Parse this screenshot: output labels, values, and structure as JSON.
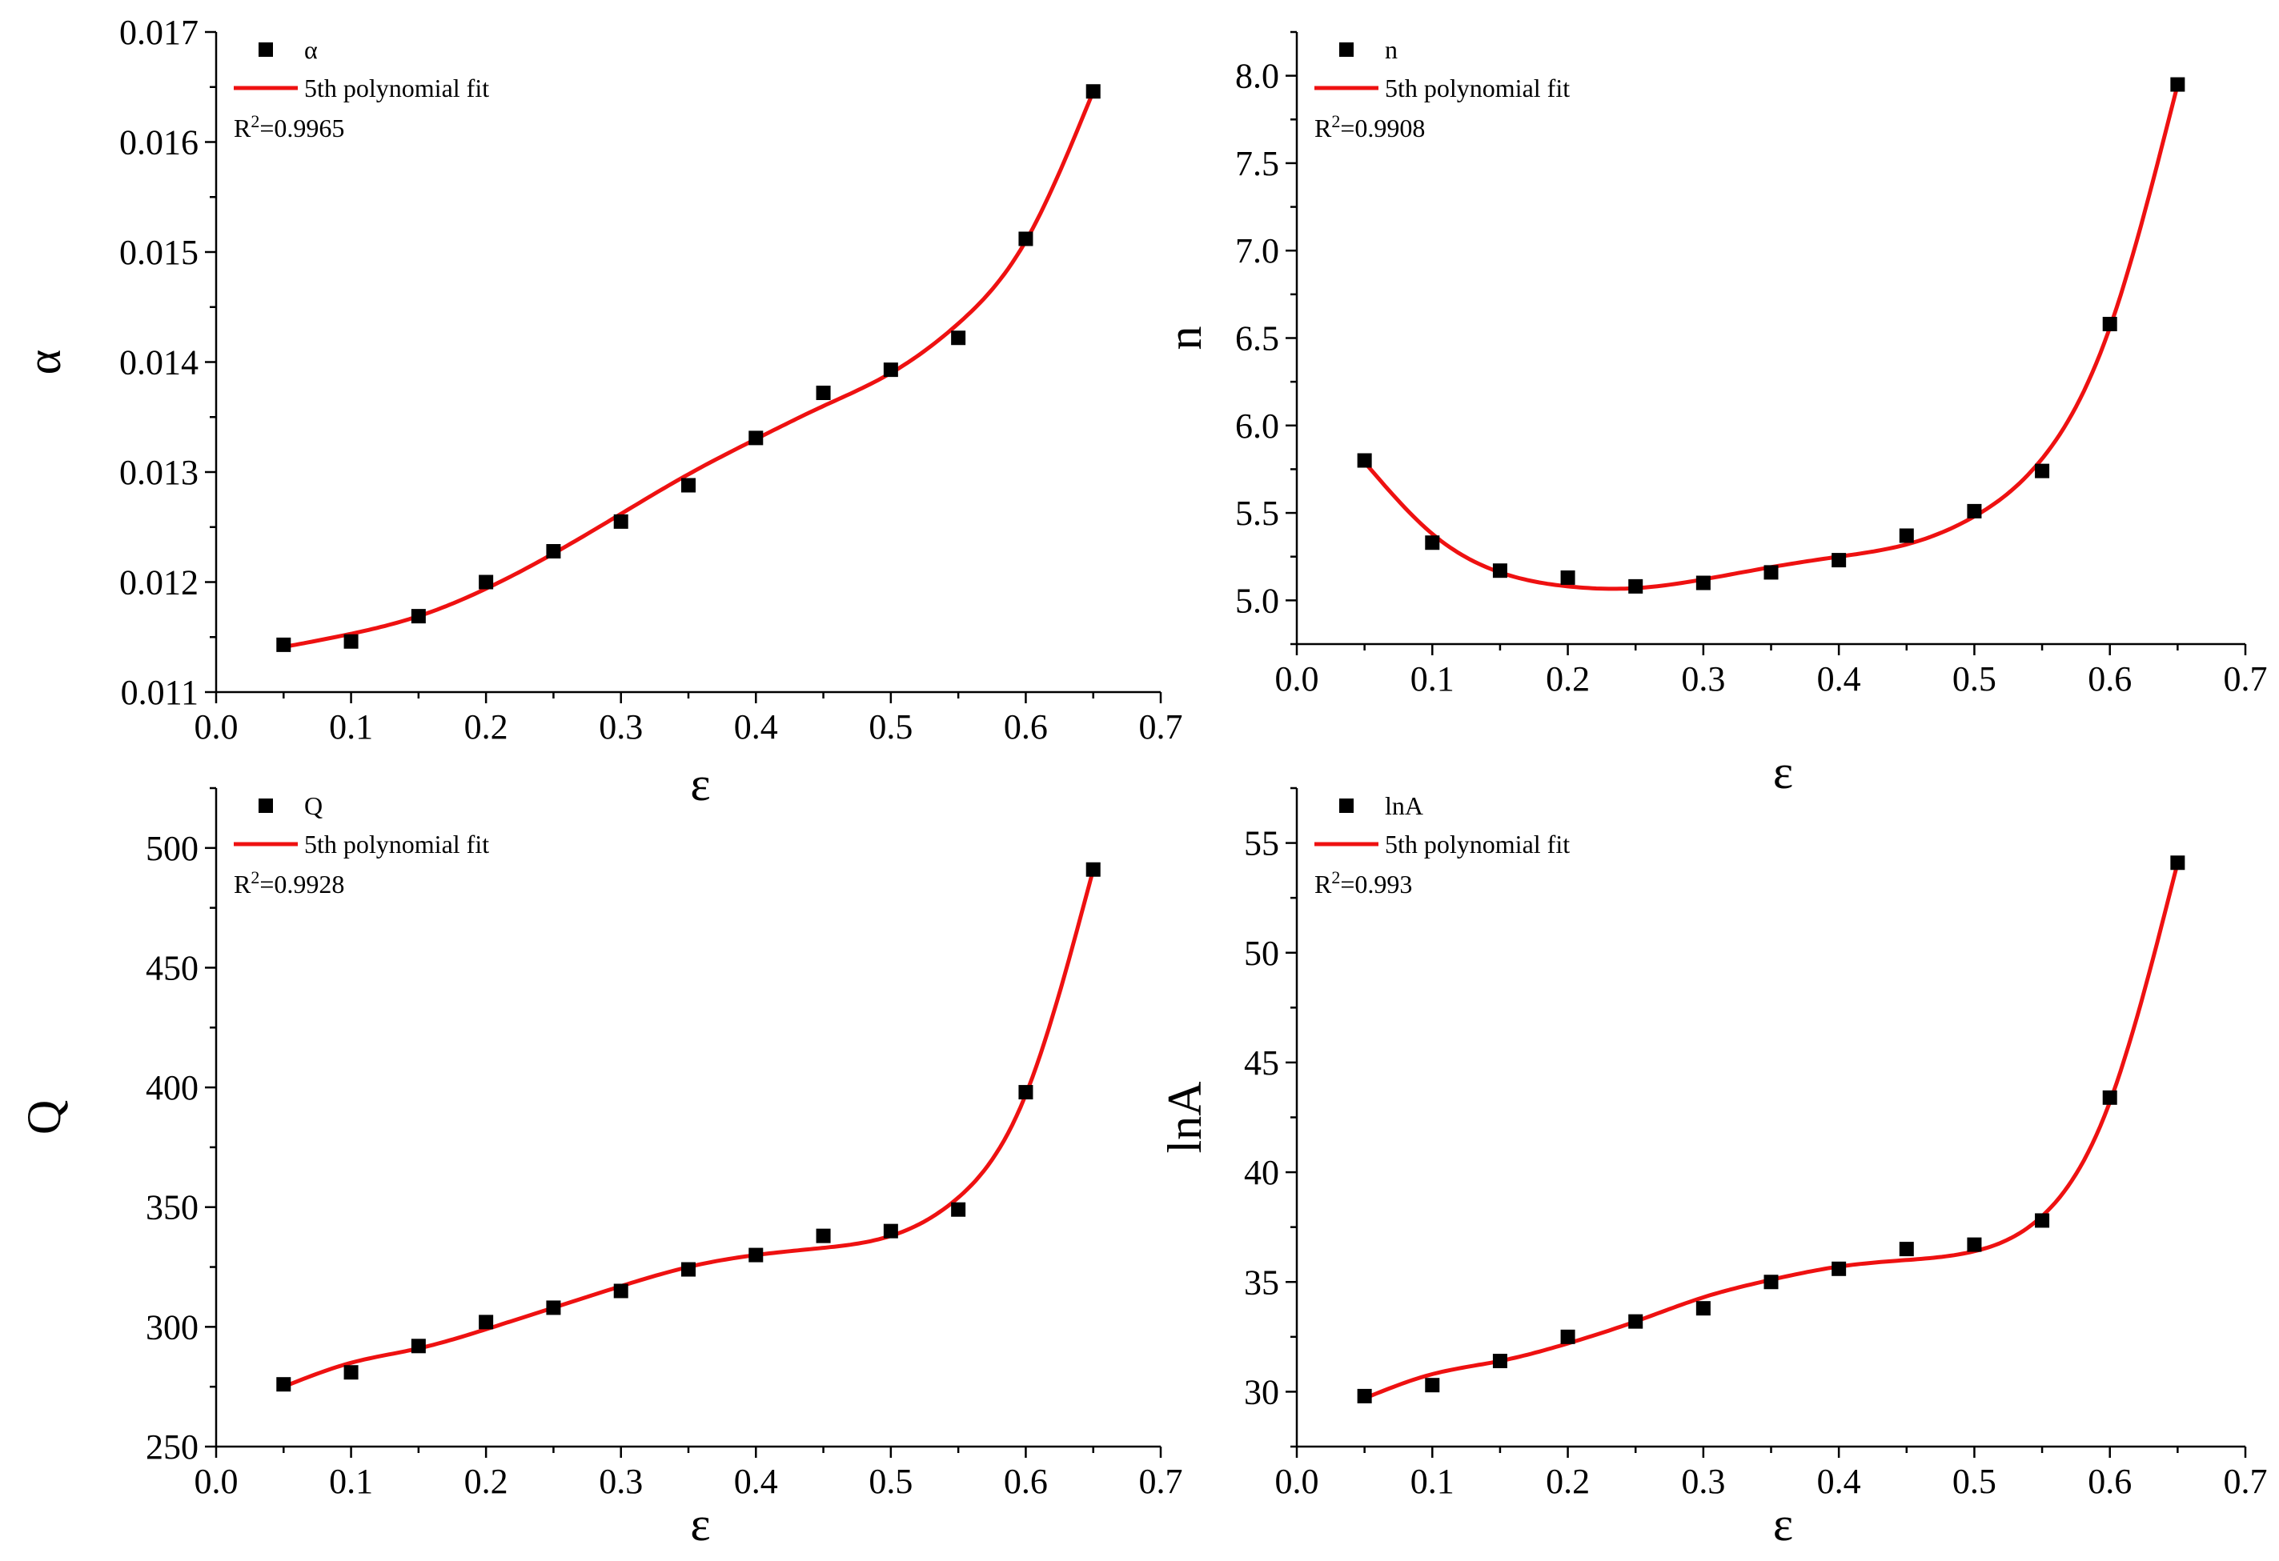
{
  "colors": {
    "fit": "#ee1111",
    "points": "#000000",
    "axes": "#000000",
    "background": "#ffffff"
  },
  "chart_data": [
    {
      "type": "scatter",
      "title": "",
      "xlabel": "ε",
      "ylabel": "α",
      "xlim": [
        0.0,
        0.7
      ],
      "ylim": [
        0.011,
        0.017
      ],
      "xticks": [
        0.0,
        0.1,
        0.2,
        0.3,
        0.4,
        0.5,
        0.6,
        0.7
      ],
      "xtick_labels": [
        "0.0",
        "0.1",
        "0.2",
        "0.3",
        "0.4",
        "0.5",
        "0.6",
        "0.7"
      ],
      "yticks": [
        0.011,
        0.012,
        0.013,
        0.014,
        0.015,
        0.016,
        0.017
      ],
      "ytick_labels": [
        "0.011",
        "0.012",
        "0.013",
        "0.014",
        "0.015",
        "0.016",
        "0.017"
      ],
      "legend": {
        "points_label": "α",
        "fit_label": "5th polynomial fit",
        "r2_prefix": "R",
        "r2_sup": "2",
        "r2_value": "=0.9965"
      },
      "series": [
        {
          "name": "α",
          "kind": "points",
          "x": [
            0.05,
            0.1,
            0.15,
            0.2,
            0.25,
            0.3,
            0.35,
            0.4,
            0.45,
            0.5,
            0.55,
            0.6,
            0.65
          ],
          "y": [
            0.01143,
            0.01146,
            0.01169,
            0.012,
            0.01228,
            0.01255,
            0.01288,
            0.01331,
            0.01372,
            0.01393,
            0.01422,
            0.01512,
            0.01646
          ]
        },
        {
          "name": "5th polynomial fit",
          "kind": "fit",
          "x": [
            0.05,
            0.1,
            0.15,
            0.2,
            0.25,
            0.3,
            0.35,
            0.4,
            0.45,
            0.5,
            0.55,
            0.6,
            0.65
          ],
          "y": [
            0.01141,
            0.01153,
            0.01169,
            0.01194,
            0.01226,
            0.01262,
            0.01298,
            0.0133,
            0.0136,
            0.0139,
            0.01435,
            0.0151,
            0.01646
          ]
        }
      ]
    },
    {
      "type": "scatter",
      "title": "",
      "xlabel": "ε",
      "ylabel": "n",
      "xlim": [
        0.0,
        0.7
      ],
      "ylim": [
        4.75,
        8.25
      ],
      "xticks": [
        0.0,
        0.1,
        0.2,
        0.3,
        0.4,
        0.5,
        0.6,
        0.7
      ],
      "xtick_labels": [
        "0.0",
        "0.1",
        "0.2",
        "0.3",
        "0.4",
        "0.5",
        "0.6",
        "0.7"
      ],
      "yticks": [
        5.0,
        5.5,
        6.0,
        6.5,
        7.0,
        7.5,
        8.0
      ],
      "ytick_labels": [
        "5.0",
        "5.5",
        "6.0",
        "6.5",
        "7.0",
        "7.5",
        "8.0"
      ],
      "legend": {
        "points_label": "n",
        "fit_label": "5th polynomial fit",
        "r2_prefix": "R",
        "r2_sup": "2",
        "r2_value": "=0.9908"
      },
      "series": [
        {
          "name": "n",
          "kind": "points",
          "x": [
            0.05,
            0.1,
            0.15,
            0.2,
            0.25,
            0.3,
            0.35,
            0.4,
            0.45,
            0.5,
            0.55,
            0.6,
            0.65
          ],
          "y": [
            5.8,
            5.33,
            5.17,
            5.13,
            5.08,
            5.1,
            5.16,
            5.23,
            5.37,
            5.51,
            5.74,
            6.58,
            7.95
          ]
        },
        {
          "name": "5th polynomial fit",
          "kind": "fit",
          "x": [
            0.05,
            0.1,
            0.15,
            0.2,
            0.25,
            0.3,
            0.35,
            0.4,
            0.45,
            0.5,
            0.55,
            0.6,
            0.65
          ],
          "y": [
            5.79,
            5.38,
            5.16,
            5.08,
            5.07,
            5.12,
            5.19,
            5.25,
            5.32,
            5.48,
            5.81,
            6.56,
            7.95
          ]
        }
      ]
    },
    {
      "type": "scatter",
      "title": "",
      "xlabel": "ε",
      "ylabel": "Q",
      "xlim": [
        0.0,
        0.7
      ],
      "ylim": [
        250,
        525
      ],
      "xticks": [
        0.0,
        0.1,
        0.2,
        0.3,
        0.4,
        0.5,
        0.6,
        0.7
      ],
      "xtick_labels": [
        "0.0",
        "0.1",
        "0.2",
        "0.3",
        "0.4",
        "0.5",
        "0.6",
        "0.7"
      ],
      "yticks": [
        250,
        300,
        350,
        400,
        450,
        500
      ],
      "ytick_labels": [
        "250",
        "300",
        "350",
        "400",
        "450",
        "500"
      ],
      "legend": {
        "points_label": "Q",
        "fit_label": "5th polynomial fit",
        "r2_prefix": "R",
        "r2_sup": "2",
        "r2_value": "=0.9928"
      },
      "series": [
        {
          "name": "Q",
          "kind": "points",
          "x": [
            0.05,
            0.1,
            0.15,
            0.2,
            0.25,
            0.3,
            0.35,
            0.4,
            0.45,
            0.5,
            0.55,
            0.6,
            0.65
          ],
          "y": [
            276,
            281,
            292,
            302,
            308,
            315,
            324,
            330,
            338,
            340,
            349,
            398,
            491
          ]
        },
        {
          "name": "5th polynomial fit",
          "kind": "fit",
          "x": [
            0.05,
            0.1,
            0.15,
            0.2,
            0.25,
            0.3,
            0.35,
            0.4,
            0.45,
            0.5,
            0.55,
            0.6,
            0.65
          ],
          "y": [
            275,
            285,
            291,
            299,
            308,
            317,
            325,
            330,
            333,
            338,
            354,
            397,
            491
          ]
        }
      ]
    },
    {
      "type": "scatter",
      "title": "",
      "xlabel": "ε",
      "ylabel": "lnA",
      "xlim": [
        0.0,
        0.7
      ],
      "ylim": [
        27.5,
        57.5
      ],
      "xticks": [
        0.0,
        0.1,
        0.2,
        0.3,
        0.4,
        0.5,
        0.6,
        0.7
      ],
      "xtick_labels": [
        "0.0",
        "0.1",
        "0.2",
        "0.3",
        "0.4",
        "0.5",
        "0.6",
        "0.7"
      ],
      "yticks": [
        30,
        35,
        40,
        45,
        50,
        55
      ],
      "ytick_labels": [
        "30",
        "35",
        "40",
        "45",
        "50",
        "55"
      ],
      "legend": {
        "points_label": "lnA",
        "fit_label": "5th polynomial fit",
        "r2_prefix": "R",
        "r2_sup": "2",
        "r2_value": "=0.993"
      },
      "series": [
        {
          "name": "lnA",
          "kind": "points",
          "x": [
            0.05,
            0.1,
            0.15,
            0.2,
            0.25,
            0.3,
            0.35,
            0.4,
            0.45,
            0.5,
            0.55,
            0.6,
            0.65
          ],
          "y": [
            29.8,
            30.3,
            31.4,
            32.5,
            33.2,
            33.8,
            35.0,
            35.6,
            36.5,
            36.7,
            37.8,
            43.4,
            54.1
          ]
        },
        {
          "name": "5th polynomial fit",
          "kind": "fit",
          "x": [
            0.05,
            0.1,
            0.15,
            0.2,
            0.25,
            0.3,
            0.35,
            0.4,
            0.45,
            0.5,
            0.55,
            0.6,
            0.65
          ],
          "y": [
            29.7,
            30.8,
            31.4,
            32.2,
            33.2,
            34.3,
            35.1,
            35.7,
            36.0,
            36.4,
            38.0,
            43.2,
            54.1
          ]
        }
      ]
    }
  ]
}
